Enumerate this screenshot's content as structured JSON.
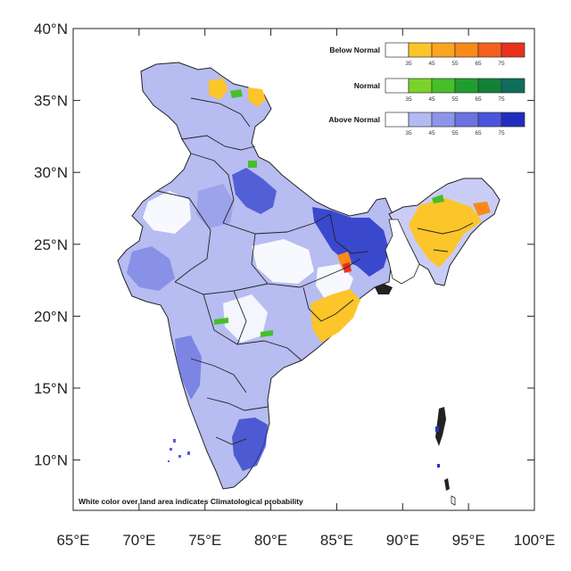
{
  "map": {
    "lon_ticks": [
      "65°E",
      "70°E",
      "75°E",
      "80°E",
      "85°E",
      "90°E",
      "95°E",
      "100°E"
    ],
    "lat_ticks": [
      "40°N",
      "35°N",
      "30°N",
      "25°N",
      "20°N",
      "15°N",
      "10°N"
    ],
    "lon_range": [
      65,
      100
    ],
    "lat_range": [
      6.5,
      40
    ],
    "footnote": "White color over land area indicates Climatological probability"
  },
  "legend": {
    "tick_labels": [
      "35",
      "45",
      "55",
      "65",
      "75"
    ],
    "categories": [
      {
        "label": "Below Normal",
        "colors": [
          "#ffffff",
          "#fcc52a",
          "#fba51e",
          "#f98a1a",
          "#f4601e",
          "#e8321c"
        ]
      },
      {
        "label": "Normal",
        "colors": [
          "#ffffff",
          "#7bd229",
          "#46bf2a",
          "#1f9e2f",
          "#138038",
          "#0c6d5a"
        ]
      },
      {
        "label": "Above Normal",
        "colors": [
          "#ffffff",
          "#b3b9f3",
          "#8c95ea",
          "#6b73e2",
          "#4b54dc",
          "#1f2dbe"
        ]
      }
    ]
  }
}
